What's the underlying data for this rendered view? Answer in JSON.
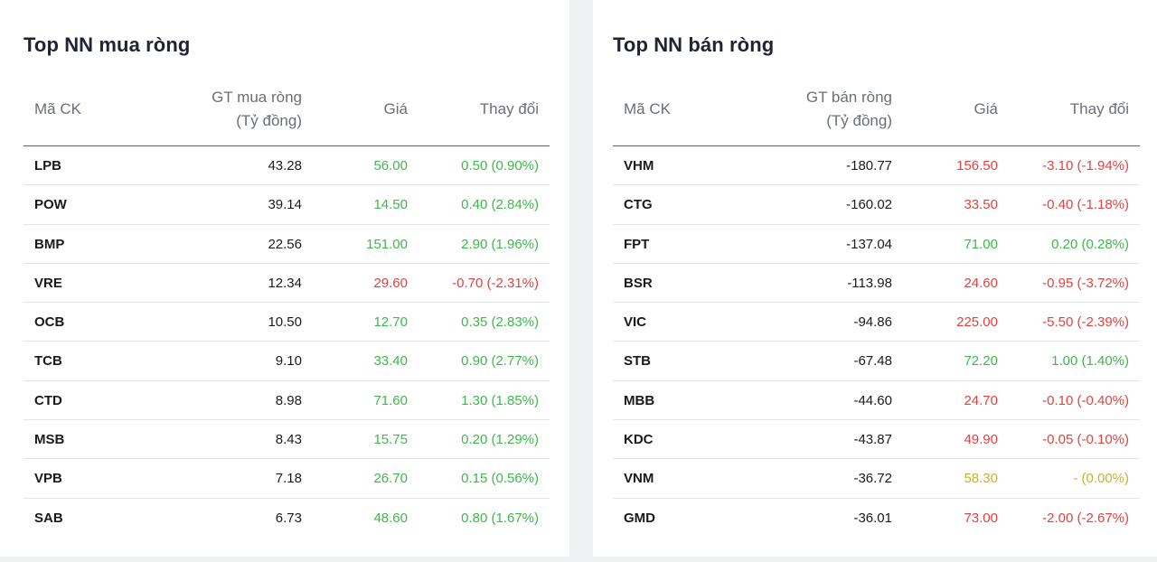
{
  "colors": {
    "up": "#3db84a",
    "down": "#e2423f",
    "flat": "#c9b12c"
  },
  "buy": {
    "title": "Top NN mua ròng",
    "headers": {
      "code": "Mã CK",
      "value_line1": "GT mua ròng",
      "value_line2": "(Tỷ đồng)",
      "price": "Giá",
      "change": "Thay đổi"
    },
    "rows": [
      {
        "code": "LPB",
        "value": "43.28",
        "price": "56.00",
        "change": "0.50 (0.90%)",
        "trend": "up"
      },
      {
        "code": "POW",
        "value": "39.14",
        "price": "14.50",
        "change": "0.40 (2.84%)",
        "trend": "up"
      },
      {
        "code": "BMP",
        "value": "22.56",
        "price": "151.00",
        "change": "2.90 (1.96%)",
        "trend": "up"
      },
      {
        "code": "VRE",
        "value": "12.34",
        "price": "29.60",
        "change": "-0.70 (-2.31%)",
        "trend": "down"
      },
      {
        "code": "OCB",
        "value": "10.50",
        "price": "12.70",
        "change": "0.35 (2.83%)",
        "trend": "up"
      },
      {
        "code": "TCB",
        "value": "9.10",
        "price": "33.40",
        "change": "0.90 (2.77%)",
        "trend": "up"
      },
      {
        "code": "CTD",
        "value": "8.98",
        "price": "71.60",
        "change": "1.30 (1.85%)",
        "trend": "up"
      },
      {
        "code": "MSB",
        "value": "8.43",
        "price": "15.75",
        "change": "0.20 (1.29%)",
        "trend": "up"
      },
      {
        "code": "VPB",
        "value": "7.18",
        "price": "26.70",
        "change": "0.15 (0.56%)",
        "trend": "up"
      },
      {
        "code": "SAB",
        "value": "6.73",
        "price": "48.60",
        "change": "0.80 (1.67%)",
        "trend": "up"
      }
    ]
  },
  "sell": {
    "title": "Top NN bán ròng",
    "headers": {
      "code": "Mã CK",
      "value_line1": "GT bán ròng",
      "value_line2": "(Tỷ đồng)",
      "price": "Giá",
      "change": "Thay đổi"
    },
    "rows": [
      {
        "code": "VHM",
        "value": "-180.77",
        "price": "156.50",
        "change": "-3.10 (-1.94%)",
        "trend": "down"
      },
      {
        "code": "CTG",
        "value": "-160.02",
        "price": "33.50",
        "change": "-0.40 (-1.18%)",
        "trend": "down"
      },
      {
        "code": "FPT",
        "value": "-137.04",
        "price": "71.00",
        "change": "0.20 (0.28%)",
        "trend": "up"
      },
      {
        "code": "BSR",
        "value": "-113.98",
        "price": "24.60",
        "change": "-0.95 (-3.72%)",
        "trend": "down"
      },
      {
        "code": "VIC",
        "value": "-94.86",
        "price": "225.00",
        "change": "-5.50 (-2.39%)",
        "trend": "down"
      },
      {
        "code": "STB",
        "value": "-67.48",
        "price": "72.20",
        "change": "1.00 (1.40%)",
        "trend": "up"
      },
      {
        "code": "MBB",
        "value": "-44.60",
        "price": "24.70",
        "change": "-0.10 (-0.40%)",
        "trend": "down"
      },
      {
        "code": "KDC",
        "value": "-43.87",
        "price": "49.90",
        "change": "-0.05 (-0.10%)",
        "trend": "down"
      },
      {
        "code": "VNM",
        "value": "-36.72",
        "price": "58.30",
        "change": "- (0.00%)",
        "trend": "flat"
      },
      {
        "code": "GMD",
        "value": "-36.01",
        "price": "73.00",
        "change": "-2.00 (-2.67%)",
        "trend": "down"
      }
    ]
  }
}
